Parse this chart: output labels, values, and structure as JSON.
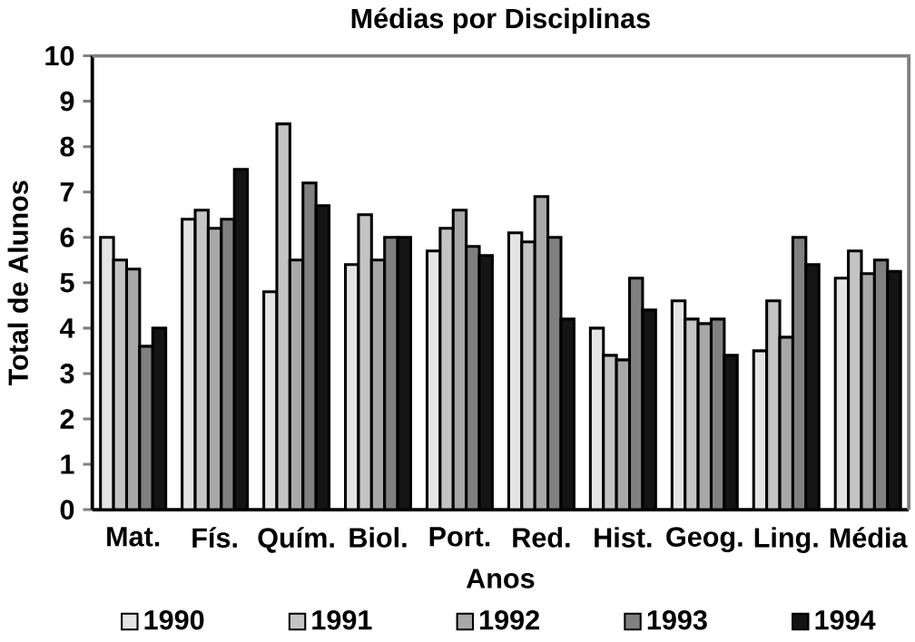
{
  "chart_data": {
    "type": "bar",
    "title": "Médias por Disciplinas",
    "xlabel": "Anos",
    "ylabel": "Total de Alunos",
    "categories": [
      "Mat.",
      "Fís.",
      "Quím.",
      "Biol.",
      "Port.",
      "Red.",
      "Hist.",
      "Geog.",
      "Ling.",
      "Média"
    ],
    "series": [
      {
        "name": "1990",
        "color": "#e4e4e4",
        "values": [
          6.0,
          6.4,
          4.8,
          5.4,
          5.7,
          6.1,
          4.0,
          4.6,
          3.5,
          5.1
        ]
      },
      {
        "name": "1991",
        "color": "#c4c4c4",
        "values": [
          5.5,
          6.6,
          8.5,
          6.5,
          6.2,
          5.9,
          3.4,
          4.2,
          4.6,
          5.7
        ]
      },
      {
        "name": "1992",
        "color": "#a8a8a8",
        "values": [
          5.3,
          6.2,
          5.5,
          5.5,
          6.6,
          6.9,
          3.3,
          4.1,
          3.8,
          5.2
        ]
      },
      {
        "name": "1993",
        "color": "#808080",
        "values": [
          3.6,
          6.4,
          7.2,
          6.0,
          5.8,
          6.0,
          5.1,
          4.2,
          6.0,
          5.5
        ]
      },
      {
        "name": "1994",
        "color": "#141414",
        "values": [
          4.0,
          7.5,
          6.7,
          6.0,
          5.6,
          4.2,
          4.4,
          3.4,
          5.4,
          5.25
        ]
      }
    ],
    "ylim": [
      0,
      10
    ],
    "yticks": [
      0,
      1,
      2,
      3,
      4,
      5,
      6,
      7,
      8,
      9,
      10
    ],
    "legend": "bottom"
  }
}
